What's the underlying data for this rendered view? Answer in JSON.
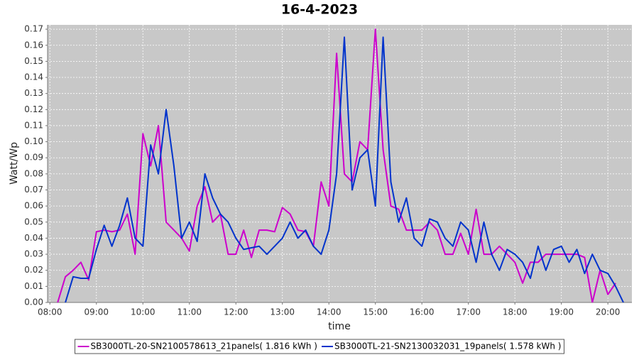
{
  "chart_data": {
    "type": "line",
    "title": "16-4-2023",
    "x_label": "time",
    "y_label": "Watt/Wp",
    "x": [
      "08:00",
      "08:10",
      "08:20",
      "08:30",
      "08:40",
      "08:50",
      "09:00",
      "09:10",
      "09:20",
      "09:30",
      "09:40",
      "09:50",
      "10:00",
      "10:10",
      "10:20",
      "10:30",
      "10:40",
      "10:50",
      "11:00",
      "11:10",
      "11:20",
      "11:30",
      "11:40",
      "11:50",
      "12:00",
      "12:10",
      "12:20",
      "12:30",
      "12:40",
      "12:50",
      "13:00",
      "13:10",
      "13:20",
      "13:30",
      "13:40",
      "13:50",
      "14:00",
      "14:10",
      "14:20",
      "14:30",
      "14:40",
      "14:50",
      "15:00",
      "15:10",
      "15:20",
      "15:30",
      "15:40",
      "15:50",
      "16:00",
      "16:10",
      "16:20",
      "16:30",
      "16:40",
      "16:50",
      "17:00",
      "17:10",
      "17:20",
      "17:30",
      "17:40",
      "17:50",
      "18:00",
      "18:10",
      "18:20",
      "18:30",
      "18:40",
      "18:50",
      "19:00",
      "19:10",
      "19:20",
      "19:30",
      "19:40",
      "19:50",
      "20:00",
      "20:10",
      "20:20"
    ],
    "series": [
      {
        "name": "SB3000TL-20-SN2100578613_21panels( 1.816 kWh )",
        "color": "#cc00cc",
        "values": [
          null,
          0,
          0.016,
          0.02,
          0.025,
          0.014,
          0.044,
          0.045,
          0.044,
          0.045,
          0.055,
          0.03,
          0.105,
          0.085,
          0.11,
          0.05,
          0.045,
          0.04,
          0.032,
          0.06,
          0.072,
          0.05,
          0.055,
          0.03,
          0.03,
          0.045,
          0.028,
          0.045,
          0.045,
          0.044,
          0.059,
          0.055,
          0.045,
          0.044,
          0.035,
          0.075,
          0.06,
          0.155,
          0.08,
          0.075,
          0.1,
          0.095,
          0.17,
          0.095,
          0.06,
          0.058,
          0.045,
          0.045,
          0.045,
          0.05,
          0.045,
          0.03,
          0.03,
          0.043,
          0.03,
          0.058,
          0.03,
          0.03,
          0.035,
          0.03,
          0.025,
          0.012,
          0.025,
          0.025,
          0.03,
          0.03,
          0.03,
          0.03,
          0.03,
          0.028,
          0,
          0.02,
          0.005,
          0.012,
          null
        ]
      },
      {
        "name": "SB3000TL-21-SN2130032031_19panels( 1.578 kWh )",
        "color": "#0033cc",
        "values": [
          null,
          null,
          0,
          0.016,
          0.015,
          0.015,
          0.033,
          0.048,
          0.035,
          0.048,
          0.065,
          0.04,
          0.035,
          0.098,
          0.08,
          0.12,
          0.085,
          0.04,
          0.05,
          0.038,
          0.08,
          0.065,
          0.055,
          0.05,
          0.04,
          0.033,
          0.034,
          0.035,
          0.03,
          0.035,
          0.04,
          0.05,
          0.04,
          0.045,
          0.035,
          0.03,
          0.045,
          0.08,
          0.165,
          0.07,
          0.09,
          0.095,
          0.06,
          0.165,
          0.075,
          0.05,
          0.065,
          0.04,
          0.035,
          0.052,
          0.05,
          0.04,
          0.035,
          0.05,
          0.045,
          0.025,
          0.05,
          0.03,
          0.02,
          0.033,
          0.03,
          0.025,
          0.015,
          0.035,
          0.02,
          0.033,
          0.035,
          0.025,
          0.033,
          0.018,
          0.03,
          0.02,
          0.018,
          0.01,
          0
        ]
      }
    ],
    "xlim": [
      "07:57",
      "20:31"
    ],
    "xticks": [
      "08:00",
      "09:00",
      "10:00",
      "11:00",
      "12:00",
      "13:00",
      "14:00",
      "15:00",
      "16:00",
      "17:00",
      "18:00",
      "19:00",
      "20:00"
    ],
    "ylim": [
      0,
      0.1727
    ],
    "yticks": [
      {
        "value": 0,
        "label": "0.00"
      },
      0.01,
      0.02,
      0.03,
      0.04,
      0.05,
      0.06,
      0.07,
      0.08,
      0.09,
      {
        "value": 0.1,
        "label": "0.10"
      },
      0.11,
      0.12,
      0.13,
      0.14,
      0.15,
      0.16,
      0.17
    ],
    "grid": true,
    "legend": "bottom"
  }
}
